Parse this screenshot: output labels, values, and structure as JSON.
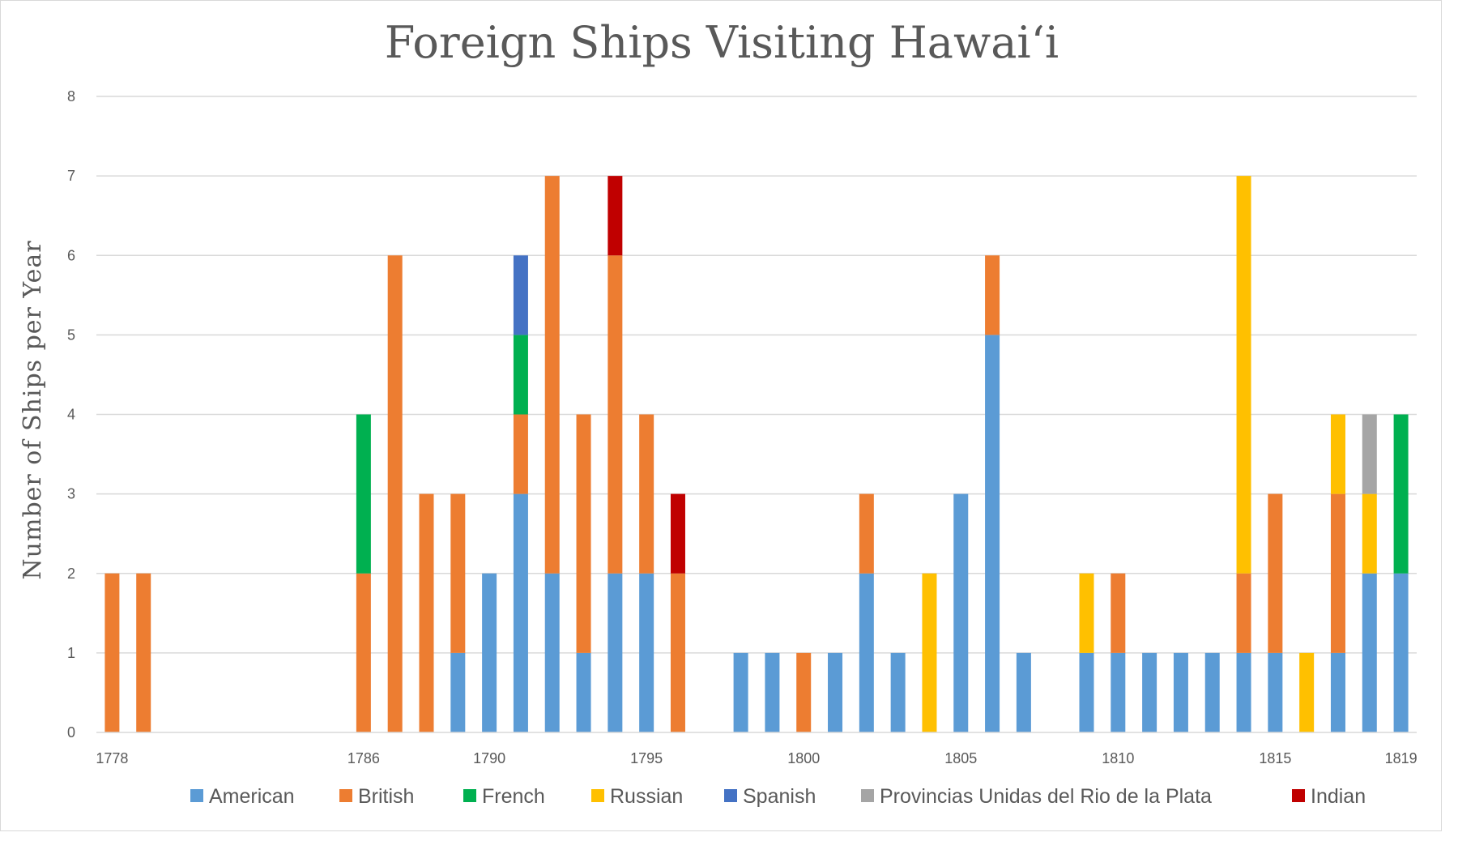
{
  "chart_data": {
    "type": "bar",
    "stacked": true,
    "title": "Foreign Ships Visiting Hawai‘i",
    "xlabel": "",
    "ylabel": "Number of Ships per Year",
    "ylim": [
      0,
      8
    ],
    "yticks": [
      0,
      1,
      2,
      3,
      4,
      5,
      6,
      7,
      8
    ],
    "grid": true,
    "legend_position": "bottom",
    "x_axis_labels": [
      "1778",
      "1786",
      "1790",
      "1795",
      "1800",
      "1805",
      "1810",
      "1815",
      "1819"
    ],
    "categories": [
      "1778",
      "1779",
      "1786",
      "1787",
      "1788",
      "1789",
      "1790",
      "1791",
      "1792",
      "1793",
      "1794",
      "1795",
      "1796",
      "1798",
      "1799",
      "1800",
      "1801",
      "1802",
      "1803",
      "1804",
      "1805",
      "1806",
      "1807",
      "1809",
      "1810",
      "1811",
      "1812",
      "1813",
      "1814",
      "1815",
      "1816",
      "1817",
      "1818",
      "1819"
    ],
    "series": [
      {
        "name": "American",
        "color": "#5b9bd5",
        "values": [
          0,
          0,
          0,
          0,
          0,
          1,
          2,
          3,
          2,
          1,
          2,
          2,
          0,
          1,
          1,
          0,
          1,
          2,
          1,
          0,
          3,
          5,
          1,
          1,
          1,
          1,
          1,
          1,
          1,
          1,
          0,
          1,
          2,
          2
        ]
      },
      {
        "name": "British",
        "color": "#ed7d31",
        "values": [
          2,
          2,
          2,
          6,
          3,
          2,
          0,
          1,
          5,
          3,
          4,
          2,
          2,
          0,
          0,
          1,
          0,
          1,
          0,
          0,
          0,
          1,
          0,
          0,
          1,
          0,
          0,
          0,
          1,
          2,
          0,
          2,
          0,
          0
        ]
      },
      {
        "name": "French",
        "color": "#00b050",
        "values": [
          0,
          0,
          2,
          0,
          0,
          0,
          0,
          1,
          0,
          0,
          0,
          0,
          0,
          0,
          0,
          0,
          0,
          0,
          0,
          0,
          0,
          0,
          0,
          0,
          0,
          0,
          0,
          0,
          0,
          0,
          0,
          0,
          0,
          2
        ]
      },
      {
        "name": "Russian",
        "color": "#ffc000",
        "values": [
          0,
          0,
          0,
          0,
          0,
          0,
          0,
          0,
          0,
          0,
          0,
          0,
          0,
          0,
          0,
          0,
          0,
          0,
          0,
          2,
          0,
          0,
          0,
          1,
          0,
          0,
          0,
          0,
          5,
          0,
          1,
          1,
          1,
          0
        ]
      },
      {
        "name": "Spanish",
        "color": "#4472c4",
        "values": [
          0,
          0,
          0,
          0,
          0,
          0,
          0,
          1,
          0,
          0,
          0,
          0,
          0,
          0,
          0,
          0,
          0,
          0,
          0,
          0,
          0,
          0,
          0,
          0,
          0,
          0,
          0,
          0,
          0,
          0,
          0,
          0,
          0,
          0
        ]
      },
      {
        "name": "Provincias Unidas del Rio de la Plata",
        "color": "#a5a5a5",
        "values": [
          0,
          0,
          0,
          0,
          0,
          0,
          0,
          0,
          0,
          0,
          0,
          0,
          0,
          0,
          0,
          0,
          0,
          0,
          0,
          0,
          0,
          0,
          0,
          0,
          0,
          0,
          0,
          0,
          0,
          0,
          0,
          0,
          1,
          0
        ]
      },
      {
        "name": "Indian",
        "color": "#c00000",
        "values": [
          0,
          0,
          0,
          0,
          0,
          0,
          0,
          0,
          0,
          0,
          1,
          0,
          1,
          0,
          0,
          0,
          0,
          0,
          0,
          0,
          0,
          0,
          0,
          0,
          0,
          0,
          0,
          0,
          0,
          0,
          0,
          0,
          0,
          0
        ]
      }
    ]
  }
}
